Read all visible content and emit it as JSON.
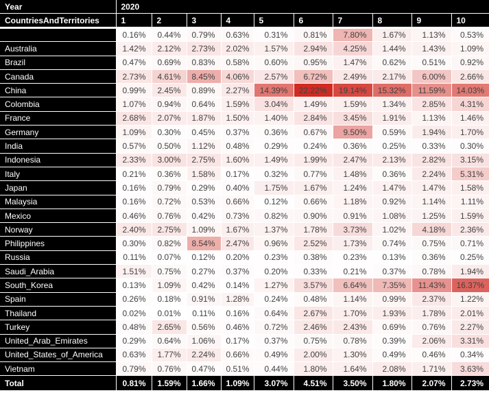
{
  "header": {
    "year_label": "Year",
    "year_value": "2020",
    "rows_dimension_label": "CountriesAndTerritories"
  },
  "chart_data": {
    "type": "heatmap",
    "value_format": "percent_2dp",
    "columns": [
      "1",
      "2",
      "3",
      "4",
      "5",
      "6",
      "7",
      "8",
      "9",
      "10"
    ],
    "rows": [
      {
        "name": "",
        "values": [
          0.16,
          0.44,
          0.79,
          0.63,
          0.31,
          0.81,
          7.8,
          1.67,
          1.13,
          0.53
        ]
      },
      {
        "name": "Australia",
        "values": [
          1.42,
          2.12,
          2.73,
          2.02,
          1.57,
          2.94,
          4.25,
          1.44,
          1.43,
          1.09
        ]
      },
      {
        "name": "Brazil",
        "values": [
          0.47,
          0.69,
          0.83,
          0.58,
          0.6,
          0.95,
          1.47,
          0.62,
          0.51,
          0.92
        ]
      },
      {
        "name": "Canada",
        "values": [
          2.73,
          4.61,
          8.45,
          4.06,
          2.57,
          6.72,
          2.49,
          2.17,
          6.0,
          2.66
        ]
      },
      {
        "name": "China",
        "values": [
          0.99,
          2.45,
          0.89,
          2.27,
          14.39,
          22.22,
          19.14,
          15.32,
          11.59,
          14.03
        ]
      },
      {
        "name": "Colombia",
        "values": [
          1.07,
          0.94,
          0.64,
          1.59,
          3.04,
          1.49,
          1.59,
          1.34,
          2.85,
          4.31
        ]
      },
      {
        "name": "France",
        "values": [
          2.68,
          2.07,
          1.87,
          1.5,
          1.4,
          2.84,
          3.45,
          1.91,
          1.13,
          1.46
        ]
      },
      {
        "name": "Germany",
        "values": [
          1.09,
          0.3,
          0.45,
          0.37,
          0.36,
          0.67,
          9.5,
          0.59,
          1.94,
          1.7
        ]
      },
      {
        "name": "India",
        "values": [
          0.57,
          0.5,
          1.12,
          0.48,
          0.29,
          0.24,
          0.36,
          0.25,
          0.33,
          0.3
        ]
      },
      {
        "name": "Indonesia",
        "values": [
          2.33,
          3.0,
          2.75,
          1.6,
          1.49,
          1.99,
          2.47,
          2.13,
          2.82,
          3.15
        ]
      },
      {
        "name": "Italy",
        "values": [
          0.21,
          0.36,
          1.58,
          0.17,
          0.32,
          0.77,
          1.48,
          0.36,
          2.24,
          5.31
        ]
      },
      {
        "name": "Japan",
        "values": [
          0.16,
          0.79,
          0.29,
          0.4,
          1.75,
          1.67,
          1.24,
          1.47,
          1.47,
          1.58
        ]
      },
      {
        "name": "Malaysia",
        "values": [
          0.16,
          0.72,
          0.53,
          0.66,
          0.12,
          0.66,
          1.18,
          0.92,
          1.14,
          1.11
        ]
      },
      {
        "name": "Mexico",
        "values": [
          0.46,
          0.76,
          0.42,
          0.73,
          0.82,
          0.9,
          0.91,
          1.08,
          1.25,
          1.59
        ]
      },
      {
        "name": "Norway",
        "values": [
          2.4,
          2.75,
          1.09,
          1.67,
          1.37,
          1.78,
          3.73,
          1.02,
          4.18,
          2.36
        ]
      },
      {
        "name": "Philippines",
        "values": [
          0.3,
          0.82,
          8.54,
          2.47,
          0.96,
          2.52,
          1.73,
          0.74,
          0.75,
          0.71
        ]
      },
      {
        "name": "Russia",
        "values": [
          0.11,
          0.07,
          0.12,
          0.2,
          0.23,
          0.38,
          0.23,
          0.13,
          0.36,
          0.25
        ]
      },
      {
        "name": "Saudi_Arabia",
        "values": [
          1.51,
          0.75,
          0.27,
          0.37,
          0.2,
          0.33,
          0.21,
          0.37,
          0.78,
          1.94
        ]
      },
      {
        "name": "South_Korea",
        "values": [
          0.13,
          1.09,
          0.42,
          0.14,
          1.27,
          3.57,
          6.64,
          7.35,
          11.43,
          16.37
        ]
      },
      {
        "name": "Spain",
        "values": [
          0.26,
          0.18,
          0.91,
          1.28,
          0.24,
          0.48,
          1.14,
          0.99,
          2.37,
          1.22
        ]
      },
      {
        "name": "Thailand",
        "values": [
          0.02,
          0.01,
          0.11,
          0.16,
          0.64,
          2.67,
          1.7,
          1.93,
          1.78,
          2.01
        ]
      },
      {
        "name": "Turkey",
        "values": [
          0.48,
          2.65,
          0.56,
          0.46,
          0.72,
          2.46,
          2.43,
          0.69,
          0.76,
          2.27
        ]
      },
      {
        "name": "United_Arab_Emirates",
        "values": [
          0.29,
          0.64,
          1.06,
          0.17,
          0.37,
          0.75,
          0.78,
          0.39,
          2.06,
          3.31
        ]
      },
      {
        "name": "United_States_of_America",
        "values": [
          0.63,
          1.77,
          2.24,
          0.66,
          0.49,
          2.0,
          1.3,
          0.49,
          0.46,
          0.34
        ]
      },
      {
        "name": "Vietnam",
        "values": [
          0.79,
          0.76,
          0.47,
          0.51,
          0.44,
          1.8,
          1.64,
          2.08,
          1.71,
          3.63
        ]
      }
    ],
    "total": {
      "label": "Total",
      "values": [
        0.81,
        1.59,
        1.66,
        1.09,
        3.07,
        4.51,
        3.5,
        1.8,
        2.07,
        2.73
      ]
    },
    "color_scale": {
      "min_value": 0,
      "max_value": 22.22,
      "min_color": "#ffffff",
      "max_color": "#d02b23"
    }
  },
  "colors": {
    "header_bg": "#000000",
    "header_text": "#ffffff",
    "cell_text": "#404040",
    "grid_line": "#ffffff"
  }
}
